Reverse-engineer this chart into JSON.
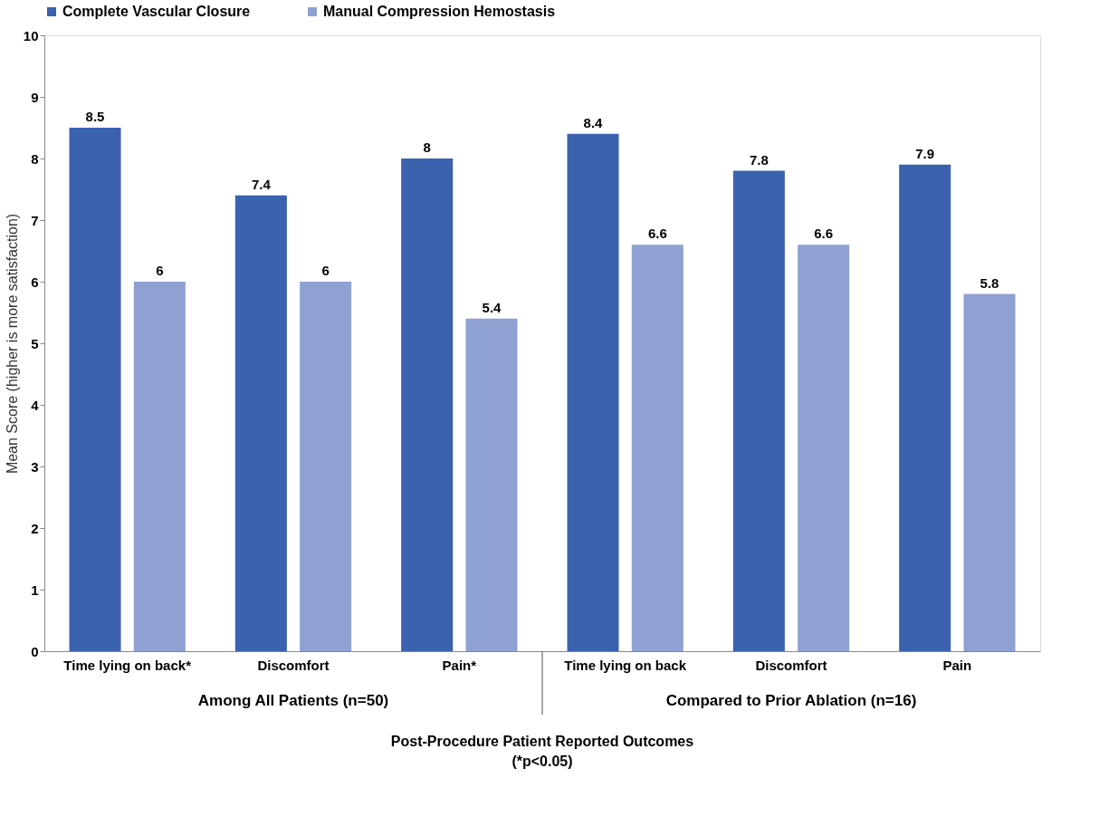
{
  "chart_data": {
    "type": "bar",
    "categories": [
      "Time lying on back*",
      "Discomfort",
      "Pain*",
      "Time lying on back",
      "Discomfort",
      "Pain"
    ],
    "series": [
      {
        "name": "Complete Vascular Closure",
        "color": "#3a62ae",
        "values": [
          8.5,
          7.4,
          8,
          8.4,
          7.8,
          7.9
        ]
      },
      {
        "name": "Manual Compression Hemostasis",
        "color": "#8fa1d3",
        "values": [
          6,
          6,
          5.4,
          6.6,
          6.6,
          5.8
        ]
      }
    ],
    "xlabel": "Post-Procedure Patient Reported Outcomes",
    "ylabel": "Mean Score (higher is more satisfaction)",
    "ylim": [
      0,
      10
    ],
    "yticks": [
      0,
      1,
      2,
      3,
      4,
      5,
      6,
      7,
      8,
      9,
      10
    ],
    "annotations": [
      "Among All Patients (n=50)",
      "Compared to Prior Ablation (n=16)",
      "(*p<0.05)"
    ],
    "data_labels": true,
    "grid": false,
    "legend": "top"
  }
}
